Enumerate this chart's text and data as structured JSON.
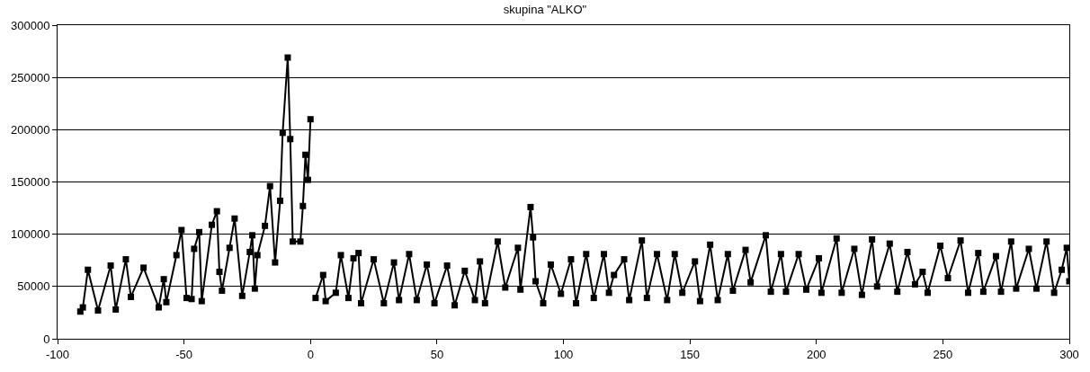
{
  "chart_data": {
    "type": "line",
    "title": "skupina \"ALKO\"",
    "x": [
      -91,
      -90,
      -88,
      -84,
      -79,
      -77,
      -73,
      -71,
      -66,
      -60,
      -58,
      -57,
      -53,
      -51,
      -49,
      -47,
      -46,
      -44,
      -43,
      -39,
      -37,
      -36,
      -35,
      -32,
      -30,
      -27,
      -24,
      -23,
      -22,
      -21,
      -18,
      -16,
      -14,
      -12,
      -11,
      -9,
      -8,
      -7,
      -4,
      -3,
      -2,
      -1,
      0,
      1,
      2,
      5,
      6,
      10,
      12,
      15,
      17,
      19,
      20,
      25,
      29,
      33,
      35,
      39,
      42,
      46,
      49,
      54,
      57,
      61,
      65,
      67,
      69,
      74,
      77,
      82,
      83,
      87,
      88,
      89,
      92,
      95,
      99,
      103,
      105,
      109,
      112,
      116,
      118,
      120,
      124,
      126,
      131,
      133,
      137,
      141,
      144,
      147,
      152,
      154,
      158,
      161,
      165,
      167,
      172,
      174,
      180,
      182,
      186,
      188,
      193,
      196,
      201,
      202,
      208,
      210,
      215,
      218,
      222,
      224,
      229,
      232,
      236,
      239,
      242,
      244,
      249,
      252,
      257,
      260,
      264,
      266,
      271,
      273,
      277,
      279,
      284,
      287,
      291,
      294,
      297,
      299,
      300
    ],
    "series": [
      {
        "color": "#000000",
        "values": [
          26000,
          30000,
          66000,
          27000,
          70000,
          28000,
          76000,
          40000,
          68000,
          30000,
          57000,
          35000,
          80000,
          104000,
          39000,
          38000,
          86000,
          102000,
          36000,
          109000,
          122000,
          64000,
          46000,
          87000,
          115000,
          41000,
          83000,
          99000,
          48000,
          80000,
          108000,
          146000,
          73000,
          132000,
          197000,
          269000,
          191000,
          93000,
          93000,
          127000,
          176000,
          152000,
          210000,
          null,
          39000,
          61000,
          36000,
          44000,
          80000,
          39000,
          77000,
          82000,
          34000,
          76000,
          34000,
          73000,
          37000,
          81000,
          37000,
          71000,
          34000,
          70000,
          32000,
          65000,
          37000,
          74000,
          34000,
          93000,
          49000,
          87000,
          47000,
          126000,
          97000,
          55000,
          34000,
          71000,
          43000,
          76000,
          34000,
          81000,
          39000,
          81000,
          44000,
          61000,
          76000,
          37000,
          94000,
          39000,
          81000,
          37000,
          81000,
          44000,
          74000,
          36000,
          90000,
          37000,
          81000,
          46000,
          85000,
          54000,
          99000,
          45000,
          81000,
          45000,
          81000,
          47000,
          77000,
          44000,
          96000,
          44000,
          86000,
          42000,
          95000,
          50000,
          91000,
          45000,
          83000,
          52000,
          64000,
          44000,
          89000,
          58000,
          94000,
          44000,
          82000,
          45000,
          79000,
          45000,
          93000,
          48000,
          86000,
          48000,
          93000,
          44000,
          66000,
          87000,
          55000
        ]
      }
    ],
    "xlim": [
      -100,
      300
    ],
    "xticks": [
      -100,
      -50,
      0,
      50,
      100,
      150,
      200,
      250,
      300
    ],
    "ylim": [
      0,
      300000
    ],
    "yticks": [
      0,
      50000,
      100000,
      150000,
      200000,
      250000,
      300000
    ],
    "grid": "y",
    "marker": "square",
    "line_style": "solid"
  }
}
